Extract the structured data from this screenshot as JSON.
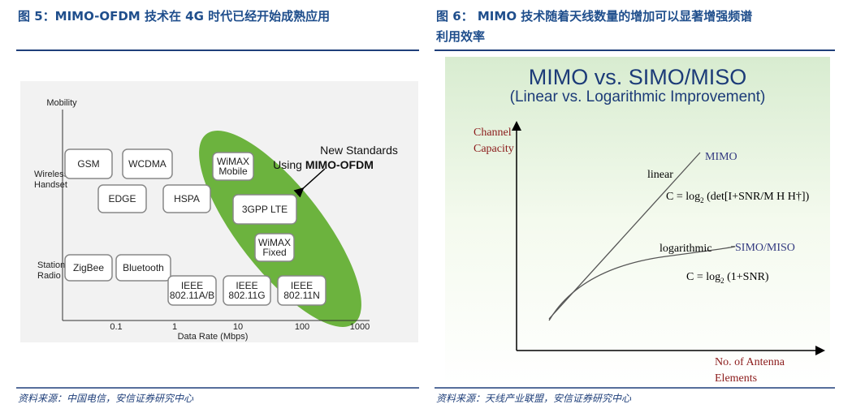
{
  "left": {
    "caption": "图 5：MIMO-OFDM 技术在 4G 时代已经开始成熟应用",
    "diagram": {
      "y_axis_label": "Mobility",
      "row_labels": [
        [
          "Wireless",
          "Handset"
        ],
        [
          "Stationary",
          "Radio"
        ]
      ],
      "boxes": [
        [
          "GSM"
        ],
        [
          "WCDMA"
        ],
        [
          "EDGE"
        ],
        [
          "HSPA"
        ],
        [
          "WiMAX",
          "Mobile"
        ],
        [
          "3GPP LTE"
        ],
        [
          "WiMAX",
          "Fixed"
        ],
        [
          "ZigBee"
        ],
        [
          "Bluetooth"
        ],
        [
          "IEEE",
          "802.11A/B"
        ],
        [
          "IEEE",
          "802.11G"
        ],
        [
          "IEEE",
          "802.11N"
        ]
      ],
      "oval_label": [
        "New Standards",
        "Using",
        "MIMO-OFDM"
      ],
      "x_ticks": [
        "0.1",
        "1",
        "10",
        "100",
        "1000"
      ],
      "x_axis_label": "Data Rate (Mbps)"
    },
    "source": "资料来源：中国电信，安信证券研究中心"
  },
  "right": {
    "caption": [
      "图 6： MIMO 技术随着天线数量的增加可以显著增强频谱",
      "利用效率"
    ],
    "chart": {
      "title": "MIMO vs. SIMO/MISO",
      "subtitle": "(Linear vs. Logarithmic Improvement)",
      "y_axis_label": [
        "Channel",
        "Capacity"
      ],
      "x_axis_label": [
        "No. of Antenna",
        "Elements"
      ],
      "mimo_label": "MIMO",
      "linear_label": "linear",
      "mimo_formula": [
        "C = log",
        "2",
        " (det[I+SNR/M H H†])"
      ],
      "log_label": "logarithmic",
      "siso_label": "SIMO/MISO",
      "siso_formula": [
        "C = log",
        "2",
        " (1+SNR)"
      ]
    },
    "source": "资料来源：天线产业联盟，安信证券研究中心"
  }
}
